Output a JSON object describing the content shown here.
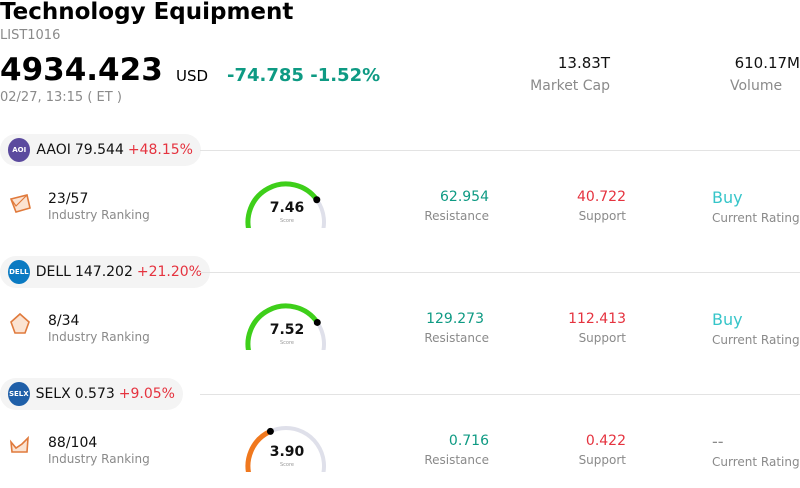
{
  "header": {
    "title": "Technology Equipment",
    "code": "LIST1016",
    "price": "4934.423",
    "currency": "USD",
    "change": "-74.785",
    "change_pct": "-1.52%",
    "timestamp": "02/27, 13:15  ( ET )"
  },
  "stats": {
    "market_cap_value": "13.83T",
    "market_cap_label": "Market Cap",
    "volume_value": "610.17M",
    "volume_label": "Volume"
  },
  "stocks": [
    {
      "symbol": "AAOI",
      "price": "79.544",
      "change_pct": "+48.15%",
      "logo_text": "AOI",
      "logo_color": "#5b4a9e",
      "ranking": "23/57",
      "ranking_label": "Industry Ranking",
      "score": "7.46",
      "score_label": "Score",
      "score_fraction": 0.746,
      "gauge_color": "#3ecf1a",
      "resistance": "62.954",
      "resistance_label": "Resistance",
      "support": "40.722",
      "support_label": "Support",
      "rating": "Buy",
      "rating_label": "Current Rating"
    },
    {
      "symbol": "DELL",
      "price": "147.202",
      "change_pct": "+21.20%",
      "logo_text": "DELL",
      "logo_color": "#0a7ac2",
      "ranking": "8/34",
      "ranking_label": "Industry Ranking",
      "score": "7.52",
      "score_label": "Score",
      "score_fraction": 0.752,
      "gauge_color": "#3ecf1a",
      "resistance": "129.273",
      "resistance_label": "Resistance",
      "support": "112.413",
      "support_label": "Support",
      "rating": "Buy",
      "rating_label": "Current Rating"
    },
    {
      "symbol": "SELX",
      "price": "0.573",
      "change_pct": "+9.05%",
      "logo_text": "SELX",
      "logo_color": "#1f5fa8",
      "ranking": "88/104",
      "ranking_label": "Industry Ranking",
      "score": "3.90",
      "score_label": "Score",
      "score_fraction": 0.39,
      "gauge_color": "#f0781e",
      "resistance": "0.716",
      "resistance_label": "Resistance",
      "support": "0.422",
      "support_label": "Support",
      "rating": "--",
      "rating_label": "Current Rating"
    }
  ]
}
